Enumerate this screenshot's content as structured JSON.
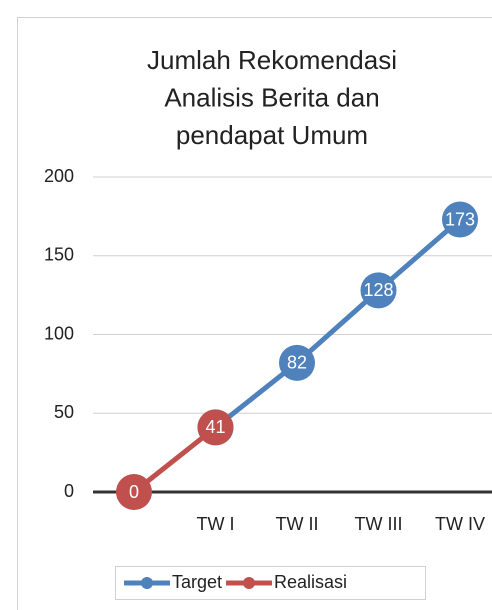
{
  "chart_data": {
    "type": "line",
    "title": [
      "Jumlah Rekomendasi",
      "Analisis Berita dan",
      "pendapat Umum"
    ],
    "categories": [
      null,
      "TW I",
      "TW II",
      "TW III",
      "TW IV"
    ],
    "series": [
      {
        "name": "Target",
        "color": "#4f81bd",
        "values": [
          null,
          41,
          82,
          128,
          173
        ]
      },
      {
        "name": "Realisasi",
        "color": "#c0504d",
        "values": [
          0,
          41,
          null,
          null,
          null
        ]
      }
    ],
    "ylim": [
      0,
      200
    ],
    "yticks": [
      0,
      50,
      100,
      150,
      200
    ],
    "grid": true,
    "legend": "bottom"
  }
}
